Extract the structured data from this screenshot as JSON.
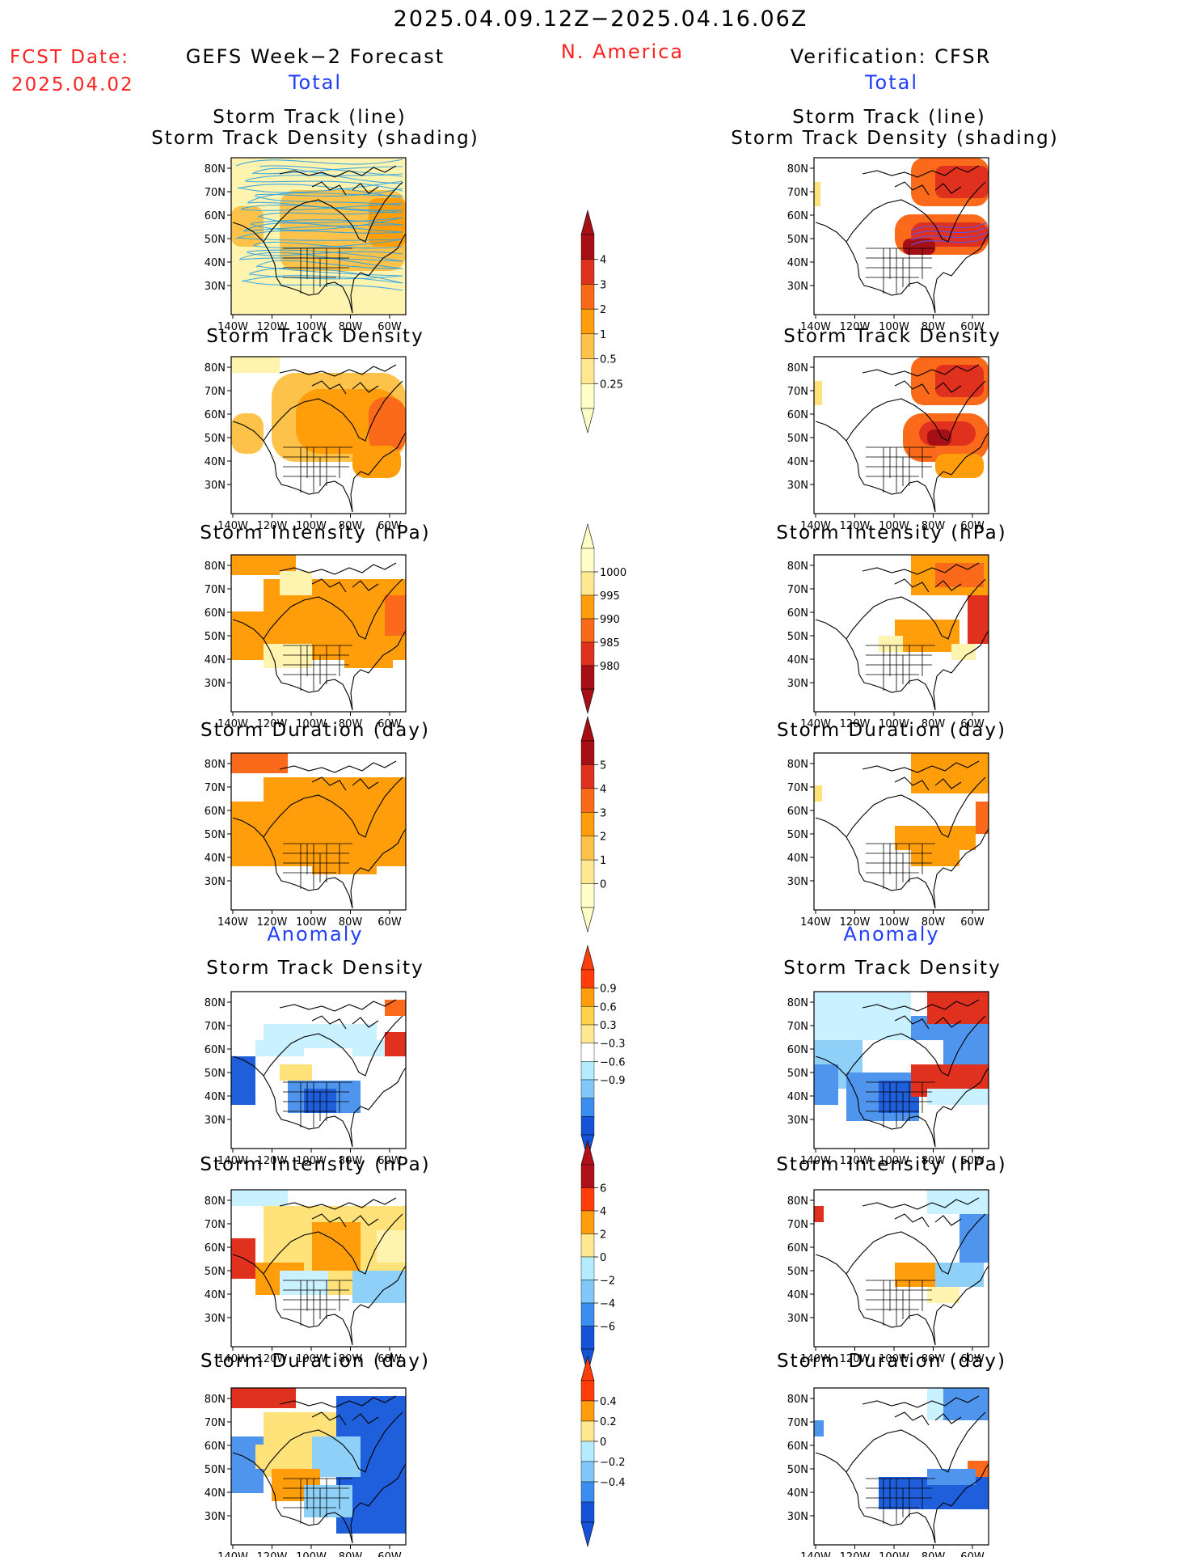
{
  "header": {
    "date_range": "2025.04.09.12Z−2025.04.16.06Z",
    "fcst_label": "FCST Date:",
    "fcst_date": "2025.04.02",
    "left_title": "GEFS Week−2 Forecast",
    "region": "N. America",
    "right_title": "Verification: CFSR"
  },
  "sections": {
    "total": "Total",
    "anomaly": "Anomaly"
  },
  "panel_titles": {
    "track_line": "Storm Track (line)",
    "track_density_shading": "Storm Track Density (shading)",
    "track_density": "Storm Track Density",
    "intensity": "Storm Intensity (hPa)",
    "duration": "Storm Duration (day)"
  },
  "axes": {
    "lat_ticks": [
      "80N",
      "70N",
      "60N",
      "50N",
      "40N",
      "30N"
    ],
    "lon_ticks": [
      "140W",
      "120W",
      "100W",
      "80W",
      "60W"
    ]
  },
  "colorbars": [
    {
      "id": "density_total",
      "labels": [
        "4",
        "3",
        "2",
        "1",
        "0.5",
        "0.25"
      ],
      "colors": [
        "#a50f15",
        "#e0301e",
        "#fb6a1a",
        "#ff9e0a",
        "#fdc24a",
        "#ffe890",
        "#ffffc8"
      ]
    },
    {
      "id": "intensity_total",
      "labels": [
        "1000",
        "995",
        "990",
        "985",
        "980"
      ],
      "colors": [
        "#ffffc8",
        "#ffe890",
        "#ff9e0a",
        "#fb6a1a",
        "#e0301e",
        "#a50f15"
      ]
    },
    {
      "id": "duration_total",
      "labels": [
        "5",
        "4",
        "3",
        "2",
        "1",
        "0"
      ],
      "colors": [
        "#a50f15",
        "#e0301e",
        "#fb6a1a",
        "#ff9e0a",
        "#fdc24a",
        "#ffe890",
        "#ffffc8"
      ]
    },
    {
      "id": "density_anom",
      "labels": [
        "0.9",
        "0.6",
        "0.3",
        "−0.3",
        "−0.6",
        "−0.9"
      ],
      "colors": [
        "#ff3d0a",
        "#ff9e0a",
        "#ffd24a",
        "#ffe890",
        "#ffffff",
        "#b4ecff",
        "#7fc8f8",
        "#3a8ef0",
        "#1652d8"
      ]
    },
    {
      "id": "intensity_anom",
      "labels": [
        "6",
        "4",
        "2",
        "0",
        "−2",
        "−4",
        "−6"
      ],
      "colors": [
        "#b0101a",
        "#ff3d0a",
        "#ff9e0a",
        "#ffe890",
        "#b4ecff",
        "#7fc8f8",
        "#3a8ef0",
        "#1652d8"
      ]
    },
    {
      "id": "duration_anom",
      "labels": [
        "0.4",
        "0.2",
        "0",
        "−0.2",
        "−0.4"
      ],
      "colors": [
        "#ff3d0a",
        "#ff9e0a",
        "#ffe890",
        "#b4ecff",
        "#7fc8f8",
        "#3a8ef0",
        "#1652d8"
      ]
    }
  ],
  "colors": {
    "red_text": "#ff2020",
    "blue_text": "#1f3cff",
    "track_line": "#2aa3e6"
  }
}
